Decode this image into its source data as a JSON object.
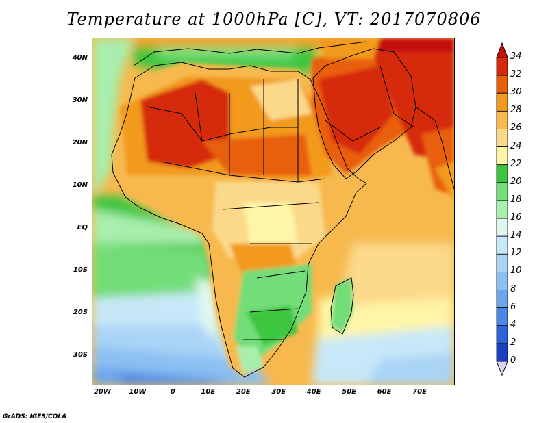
{
  "title": "Temperature at 1000hPa [C], VT: 2017070806",
  "credit": "GrADS: IGES/COLA",
  "map": {
    "lon_range": [
      -23,
      80
    ],
    "lat_range": [
      -37,
      45
    ],
    "lat_ticks": [
      {
        "value": 40,
        "label": "40N"
      },
      {
        "value": 30,
        "label": "30N"
      },
      {
        "value": 20,
        "label": "20N"
      },
      {
        "value": 10,
        "label": "10N"
      },
      {
        "value": 0,
        "label": "EQ"
      },
      {
        "value": -10,
        "label": "10S"
      },
      {
        "value": -20,
        "label": "20S"
      },
      {
        "value": -30,
        "label": "30S"
      }
    ],
    "lon_ticks": [
      {
        "value": -20,
        "label": "20W"
      },
      {
        "value": -10,
        "label": "10W"
      },
      {
        "value": 0,
        "label": "0"
      },
      {
        "value": 10,
        "label": "10E"
      },
      {
        "value": 20,
        "label": "20E"
      },
      {
        "value": 30,
        "label": "30E"
      },
      {
        "value": 40,
        "label": "40E"
      },
      {
        "value": 50,
        "label": "50E"
      },
      {
        "value": 60,
        "label": "60E"
      },
      {
        "value": 70,
        "label": "70E"
      }
    ]
  },
  "colorbar": {
    "levels": [
      "0",
      "2",
      "4",
      "6",
      "8",
      "10",
      "12",
      "14",
      "16",
      "18",
      "20",
      "22",
      "24",
      "26",
      "28",
      "30",
      "32",
      "34"
    ],
    "colors": [
      "#0a1a78",
      "#1a3fc0",
      "#2f63d8",
      "#4a88e8",
      "#6aa5ee",
      "#8cc0f2",
      "#a9d4f6",
      "#c7e8f8",
      "#dff7ef",
      "#a8eeac",
      "#73dd78",
      "#3cc63f",
      "#fff5a6",
      "#fbd98a",
      "#f7b94d",
      "#f29a1f",
      "#e85f0a",
      "#d62a0a",
      "#c40f0a"
    ]
  },
  "regions": [
    {
      "name": "sahara-core",
      "color": "#d62a0a"
    },
    {
      "name": "arabia-core",
      "color": "#d62a0a"
    },
    {
      "name": "arabian-sea",
      "color": "#f7b94d"
    },
    {
      "name": "atlantic-south",
      "color": "#8cc0f2"
    },
    {
      "name": "southern-africa",
      "color": "#73dd78"
    }
  ]
}
